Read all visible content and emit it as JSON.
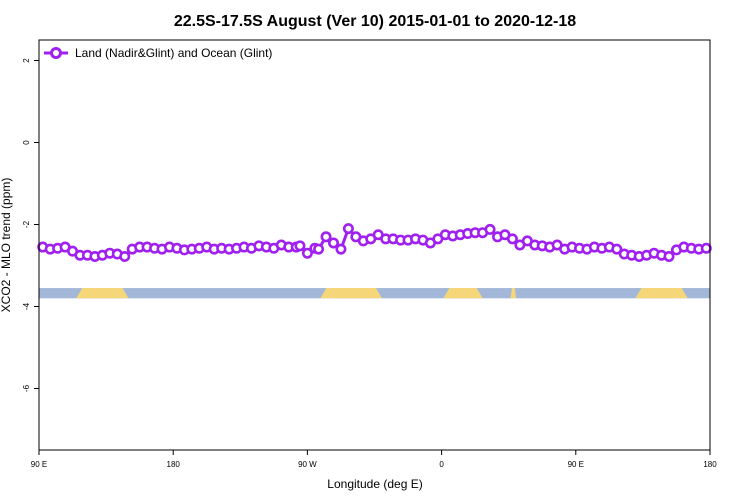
{
  "chart_data": {
    "type": "line",
    "title": "22.5S-17.5S August (Ver 10)   2015-01-01 to 2020-12-18",
    "xlabel": "Longitude (deg E)",
    "ylabel": "XCO2 - MLO trend (ppm)",
    "xlim": [
      90,
      450
    ],
    "ylim": [
      -7.5,
      2.5
    ],
    "x_ticks": [
      {
        "value": 90,
        "label": "90 E"
      },
      {
        "value": 162,
        "label": "180"
      },
      {
        "value": 234,
        "label": "90 W"
      },
      {
        "value": 306,
        "label": "0"
      },
      {
        "value": 378,
        "label": "90 E"
      },
      {
        "value": 450,
        "label": "180"
      }
    ],
    "y_ticks": [
      {
        "value": 2,
        "label": "2"
      },
      {
        "value": 0,
        "label": "0"
      },
      {
        "value": -2,
        "label": "-2"
      },
      {
        "value": -4,
        "label": "-4"
      },
      {
        "value": -6,
        "label": "-6"
      }
    ],
    "legend_position": "top-left",
    "series": [
      {
        "name": "Land (Nadir&Glint) and Ocean (Glint)",
        "color": "#a020f0",
        "marker": "open-circle",
        "x": [
          92,
          96,
          100,
          104,
          108,
          112,
          116,
          120,
          124,
          128,
          132,
          136,
          140,
          144,
          148,
          152,
          156,
          160,
          164,
          168,
          172,
          176,
          180,
          184,
          188,
          192,
          196,
          200,
          204,
          208,
          212,
          216,
          220,
          224,
          228,
          230,
          234,
          238,
          240,
          244,
          248,
          252,
          256,
          260,
          264,
          268,
          272,
          276,
          280,
          284,
          288,
          292,
          296,
          300,
          304,
          308,
          312,
          316,
          320,
          324,
          328,
          332,
          336,
          340,
          344,
          348,
          352,
          356,
          360,
          364,
          368,
          372,
          376,
          380,
          384,
          388,
          392,
          396,
          400,
          404,
          408,
          412,
          416,
          420,
          424,
          428,
          432,
          436,
          440,
          444,
          448
        ],
        "y": [
          -2.55,
          -2.6,
          -2.58,
          -2.55,
          -2.65,
          -2.75,
          -2.75,
          -2.78,
          -2.75,
          -2.7,
          -2.72,
          -2.78,
          -2.6,
          -2.55,
          -2.55,
          -2.58,
          -2.6,
          -2.55,
          -2.58,
          -2.62,
          -2.6,
          -2.58,
          -2.55,
          -2.6,
          -2.58,
          -2.6,
          -2.58,
          -2.55,
          -2.58,
          -2.52,
          -2.55,
          -2.58,
          -2.5,
          -2.55,
          -2.55,
          -2.52,
          -2.7,
          -2.58,
          -2.6,
          -2.3,
          -2.45,
          -2.6,
          -2.1,
          -2.3,
          -2.4,
          -2.35,
          -2.25,
          -2.35,
          -2.35,
          -2.38,
          -2.38,
          -2.35,
          -2.38,
          -2.45,
          -2.35,
          -2.25,
          -2.28,
          -2.25,
          -2.22,
          -2.2,
          -2.2,
          -2.12,
          -2.3,
          -2.25,
          -2.35,
          -2.5,
          -2.4,
          -2.5,
          -2.52,
          -2.55,
          -2.5,
          -2.6,
          -2.55,
          -2.58,
          -2.6,
          -2.55,
          -2.58,
          -2.55,
          -2.6,
          -2.72,
          -2.75,
          -2.78,
          -2.75,
          -2.7,
          -2.75,
          -2.78,
          -2.62,
          -2.55,
          -2.58,
          -2.6,
          -2.58
        ]
      }
    ],
    "surface_bar": {
      "y_top": -3.55,
      "y_bottom": -3.8,
      "ocean_color": "#a3b8d8",
      "land_color": "#f5d77a",
      "land_segments": [
        [
          110,
          138
        ],
        [
          241,
          274
        ],
        [
          307,
          328
        ],
        [
          343,
          346
        ],
        [
          410,
          438
        ]
      ]
    }
  }
}
